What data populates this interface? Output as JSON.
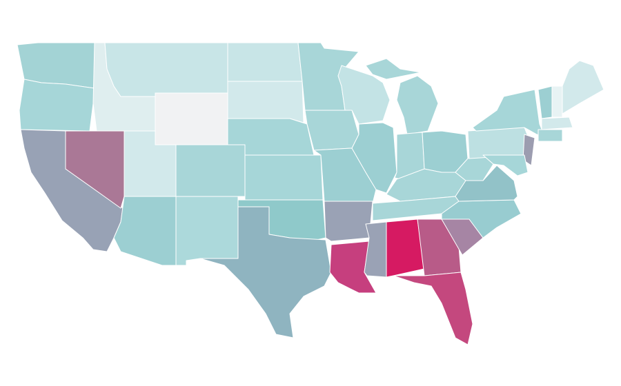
{
  "map": {
    "stroke": "#ffffff",
    "fills": [
      "#a3d3d5",
      "#a6d6d8",
      "#98a2b5",
      "#aa7896",
      "#dfeeef",
      "#c8e5e7",
      "#f1f2f3",
      "#d2e9eb",
      "#9ccfd2",
      "#a8d6d8",
      "#acd9db",
      "#c8e5e7",
      "#d2e9eb",
      "#a6d6d8",
      "#a6d6d8",
      "#8fc9ca",
      "#8fb4c0",
      "#a8d6d8",
      "#a8d6d8",
      "#9ccfd2",
      "#9aa2b5",
      "#c63f7e",
      "#c3e3e5",
      "#9ccfd2",
      "#a8d6d8",
      "#a8d6d8",
      "#9ccfd2",
      "#a8d6d8",
      "#a8d6d8",
      "#9aa2b5",
      "#d61a62",
      "#b85b88",
      "#c4487e",
      "#a685a4",
      "#98ccd0",
      "#92c2c8",
      "#a8d6d8",
      "#bde0e2",
      "#a6d6d8",
      "#9c9db0",
      "#a6d6d8",
      "#9ccfd2",
      "#e8f3f4",
      "#d2e9eb",
      "#d2e9eb",
      "#a8d6d8",
      "#bde0e2"
    ]
  }
}
